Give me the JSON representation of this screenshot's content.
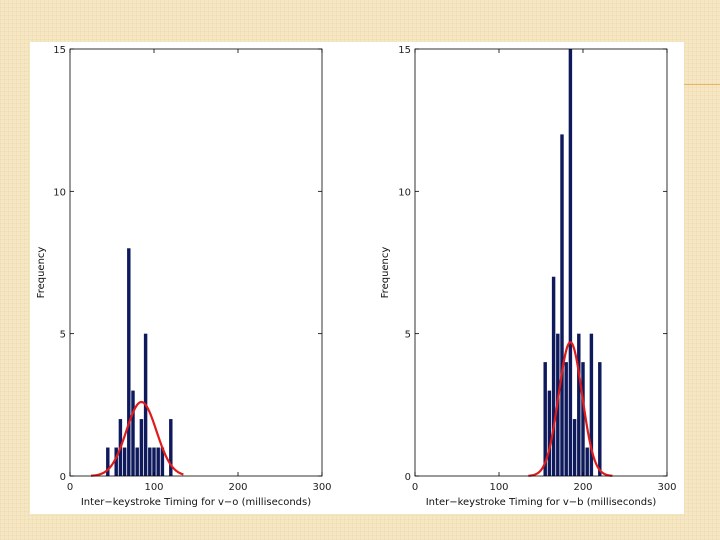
{
  "colors": {
    "background": "#f6e7c4",
    "accent_line": "#e8b46a",
    "bar": "#0f1a5c",
    "fit_curve": "#e01b1b",
    "axis": "#000000"
  },
  "chart_data": [
    {
      "type": "bar",
      "subtype": "histogram-with-normal-fit",
      "title": "",
      "xlabel": "Inter−keystroke Timing for v−o (milliseconds)",
      "ylabel": "Frequency",
      "xlim": [
        0,
        300
      ],
      "ylim": [
        0,
        15
      ],
      "xticks": [
        0,
        100,
        200,
        300
      ],
      "yticks": [
        0,
        5,
        10,
        15
      ],
      "bin_width": 5,
      "bars": [
        {
          "x": 45,
          "y": 1
        },
        {
          "x": 55,
          "y": 1
        },
        {
          "x": 60,
          "y": 2
        },
        {
          "x": 65,
          "y": 1
        },
        {
          "x": 70,
          "y": 8
        },
        {
          "x": 75,
          "y": 3
        },
        {
          "x": 80,
          "y": 1
        },
        {
          "x": 85,
          "y": 2
        },
        {
          "x": 90,
          "y": 5
        },
        {
          "x": 95,
          "y": 1
        },
        {
          "x": 100,
          "y": 1
        },
        {
          "x": 105,
          "y": 1
        },
        {
          "x": 110,
          "y": 1
        },
        {
          "x": 120,
          "y": 2
        }
      ],
      "fit": {
        "mean": 85,
        "std": 18,
        "peak": 2.6,
        "range": [
          25,
          135
        ]
      }
    },
    {
      "type": "bar",
      "subtype": "histogram-with-normal-fit",
      "title": "",
      "xlabel": "Inter−keystroke Timing for v−b (milliseconds)",
      "ylabel": "Frequency",
      "xlim": [
        0,
        300
      ],
      "ylim": [
        0,
        15
      ],
      "xticks": [
        0,
        100,
        200,
        300
      ],
      "yticks": [
        0,
        5,
        10,
        15
      ],
      "bin_width": 5,
      "bars": [
        {
          "x": 155,
          "y": 4
        },
        {
          "x": 160,
          "y": 3
        },
        {
          "x": 165,
          "y": 7
        },
        {
          "x": 170,
          "y": 5
        },
        {
          "x": 175,
          "y": 12
        },
        {
          "x": 180,
          "y": 4
        },
        {
          "x": 185,
          "y": 15
        },
        {
          "x": 190,
          "y": 2
        },
        {
          "x": 195,
          "y": 5
        },
        {
          "x": 200,
          "y": 4
        },
        {
          "x": 205,
          "y": 1
        },
        {
          "x": 210,
          "y": 5
        },
        {
          "x": 220,
          "y": 4
        }
      ],
      "fit": {
        "mean": 185,
        "std": 14,
        "peak": 4.7,
        "range": [
          135,
          235
        ]
      }
    }
  ]
}
